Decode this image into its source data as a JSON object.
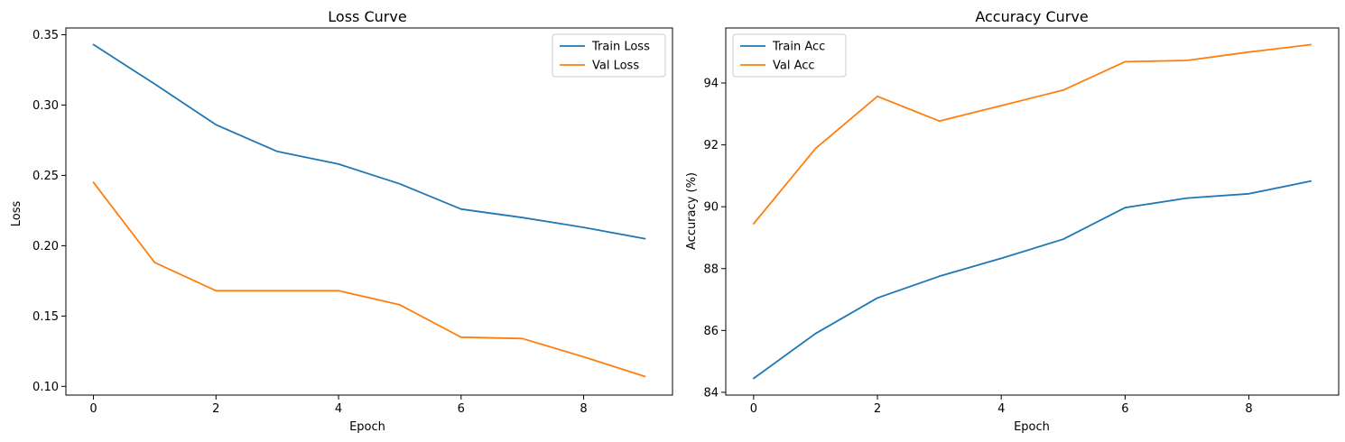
{
  "colors": {
    "train": "#1f77b4",
    "val": "#ff7f0e"
  },
  "chart_data": [
    {
      "type": "line",
      "title": "Loss Curve",
      "xlabel": "Epoch",
      "ylabel": "Loss",
      "x": [
        0,
        1,
        2,
        3,
        4,
        5,
        6,
        7,
        8,
        9
      ],
      "xlim": [
        -0.45,
        9.45
      ],
      "ylim": [
        0.0938,
        0.3548
      ],
      "xticks": [
        0,
        2,
        4,
        6,
        8
      ],
      "yticks": [
        0.1,
        0.15,
        0.2,
        0.25,
        0.3,
        0.35
      ],
      "ytick_labels": [
        "0.10",
        "0.15",
        "0.20",
        "0.25",
        "0.30",
        "0.35"
      ],
      "legend_position": "top-right",
      "grid": false,
      "series": [
        {
          "name": "Train Loss",
          "color": "#1f77b4",
          "values": [
            0.343,
            0.315,
            0.286,
            0.267,
            0.258,
            0.244,
            0.226,
            0.22,
            0.213,
            0.205
          ]
        },
        {
          "name": "Val Loss",
          "color": "#ff7f0e",
          "values": [
            0.245,
            0.188,
            0.168,
            0.168,
            0.168,
            0.158,
            0.135,
            0.134,
            0.121,
            0.107
          ]
        }
      ]
    },
    {
      "type": "line",
      "title": "Accuracy Curve",
      "xlabel": "Epoch",
      "ylabel": "Accuracy (%)",
      "x": [
        0,
        1,
        2,
        3,
        4,
        5,
        6,
        7,
        8,
        9
      ],
      "xlim": [
        -0.45,
        9.45
      ],
      "ylim": [
        83.91,
        95.78
      ],
      "xticks": [
        0,
        2,
        4,
        6,
        8
      ],
      "yticks": [
        84,
        86,
        88,
        90,
        92,
        94
      ],
      "ytick_labels": [
        "84",
        "86",
        "88",
        "90",
        "92",
        "94"
      ],
      "legend_position": "top-left",
      "grid": false,
      "series": [
        {
          "name": "Train Acc",
          "color": "#1f77b4",
          "values": [
            84.45,
            85.9,
            87.05,
            87.75,
            88.33,
            88.95,
            89.97,
            90.28,
            90.42,
            90.83
          ]
        },
        {
          "name": "Val Acc",
          "color": "#ff7f0e",
          "values": [
            89.45,
            91.88,
            93.57,
            92.77,
            93.27,
            93.77,
            94.69,
            94.73,
            95.0,
            95.24
          ]
        }
      ]
    }
  ]
}
